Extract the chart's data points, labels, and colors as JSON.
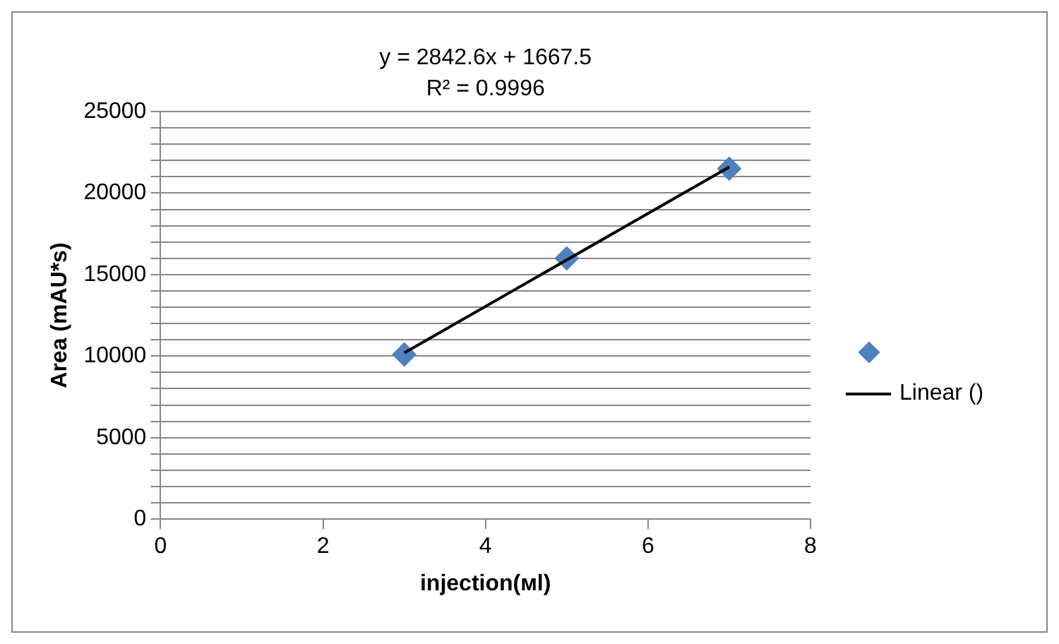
{
  "chart_data": {
    "type": "scatter",
    "xlabel": "injection(мl)",
    "ylabel": "Area (mAU*s)",
    "annotations": [
      "y = 2842.6x + 1667.5",
      "R² = 0.9996"
    ],
    "series": [
      {
        "color": "#4f81bd",
        "marker": "diamond",
        "x": [
          3,
          5,
          7
        ],
        "values": [
          10100,
          16000,
          21500
        ]
      },
      {
        "type": "line",
        "name": "Linear ()",
        "color": "#000000",
        "marker": "none",
        "x": [
          3,
          7
        ],
        "values": [
          10200,
          21600
        ]
      }
    ],
    "xlim": [
      0,
      8
    ],
    "xticks": [
      0,
      2,
      4,
      6,
      8
    ],
    "ylim": [
      0,
      25000
    ],
    "yticks": [
      0,
      {
        "value": 1000,
        "label": null
      },
      {
        "value": 2000,
        "label": null
      },
      {
        "value": 3000,
        "label": null
      },
      {
        "value": 4000,
        "label": null
      },
      5000,
      {
        "value": 6000,
        "label": null
      },
      {
        "value": 7000,
        "label": null
      },
      {
        "value": 8000,
        "label": null
      },
      {
        "value": 9000,
        "label": null
      },
      10000,
      {
        "value": 11000,
        "label": null
      },
      {
        "value": 12000,
        "label": null
      },
      {
        "value": 13000,
        "label": null
      },
      {
        "value": 14000,
        "label": null
      },
      15000,
      {
        "value": 16000,
        "label": null
      },
      {
        "value": 17000,
        "label": null
      },
      {
        "value": 18000,
        "label": null
      },
      {
        "value": 19000,
        "label": null
      },
      20000,
      {
        "value": 21000,
        "label": null
      },
      {
        "value": 22000,
        "label": null
      },
      {
        "value": 23000,
        "label": null
      },
      {
        "value": 24000,
        "label": null
      },
      25000
    ],
    "grid": "y",
    "legend": "right"
  }
}
